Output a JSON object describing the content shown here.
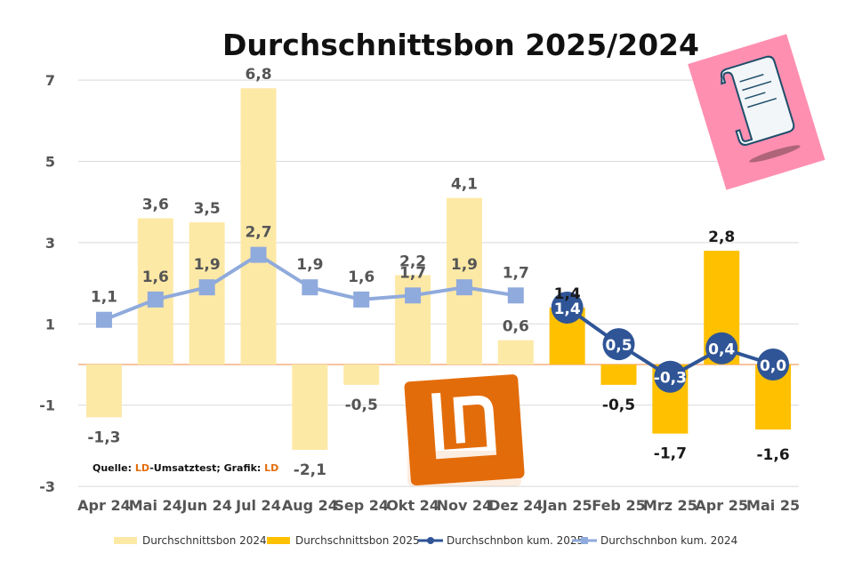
{
  "chart_data": {
    "type": "bar",
    "title": "Durchschnittsbon 2025/2024",
    "categories": [
      "Apr 24",
      "Mai 24",
      "Jun 24",
      "Jul 24",
      "Aug 24",
      "Sep 24",
      "Okt 24",
      "Nov 24",
      "Dez 24",
      "Jan 25",
      "Feb 25",
      "Mrz 25",
      "Apr 25",
      "Mai 25"
    ],
    "yticks": [
      "7",
      "5",
      "3",
      "1",
      "-1",
      "-3"
    ],
    "ylim": [
      -3,
      7.5
    ],
    "grid": true,
    "legend_position": "bottom",
    "series": [
      {
        "name": "Durchschnittsbon 2024",
        "kind": "bar",
        "color": "#FDE9A6",
        "values": [
          -1.3,
          3.6,
          3.5,
          6.8,
          -2.1,
          -0.5,
          2.2,
          4.1,
          0.6,
          null,
          null,
          null,
          null,
          null
        ],
        "labels": [
          "-1,3",
          "3,6",
          "3,5",
          "6,8",
          "-2,1",
          "-0,5",
          "2,2",
          "4,1",
          "0,6",
          "",
          "",
          "",
          "",
          ""
        ]
      },
      {
        "name": "Durchschnittsbon 2025",
        "kind": "bar",
        "color": "#FFC000",
        "values": [
          null,
          null,
          null,
          null,
          null,
          null,
          null,
          null,
          null,
          1.4,
          -0.5,
          -1.7,
          2.8,
          -1.6
        ],
        "labels": [
          "",
          "",
          "",
          "",
          "",
          "",
          "",
          "",
          "",
          "1,4",
          "-0,5",
          "-1,7",
          "2,8",
          "-1,6"
        ]
      },
      {
        "name": "Durchschnbon kum. 2025",
        "kind": "line",
        "color": "#2F5597",
        "values": [
          null,
          null,
          null,
          null,
          null,
          null,
          null,
          null,
          null,
          1.4,
          0.5,
          -0.3,
          0.4,
          0.0
        ],
        "labels": [
          "",
          "",
          "",
          "",
          "",
          "",
          "",
          "",
          "",
          "1,4",
          "0,5",
          "-0,3",
          "0,4",
          "0,0"
        ]
      },
      {
        "name": "Durchschnbon kum. 2024",
        "kind": "line",
        "color": "#8FAADC",
        "values": [
          1.1,
          1.6,
          1.9,
          2.7,
          1.9,
          1.6,
          1.7,
          1.9,
          1.7,
          null,
          null,
          null,
          null,
          null
        ],
        "labels": [
          "1,1",
          "1,6",
          "1,9",
          "2,7",
          "1,9",
          "1,6",
          "1,7",
          "1,9",
          "1,7",
          "",
          "",
          "",
          "",
          ""
        ]
      }
    ]
  },
  "source": {
    "prefix": "Quelle: ",
    "ld1": "LD",
    "middle": "-Umsatztest; Grafik: ",
    "ld2": "LD"
  },
  "colors": {
    "zero_line": "#F4B183",
    "grid": "#D9D9D9",
    "ld_orange": "#E36C0A",
    "receipt_bg": "#FF8FB1"
  },
  "icons": {
    "logo": "ld-logo-icon",
    "receipt": "receipt-scroll-icon"
  }
}
